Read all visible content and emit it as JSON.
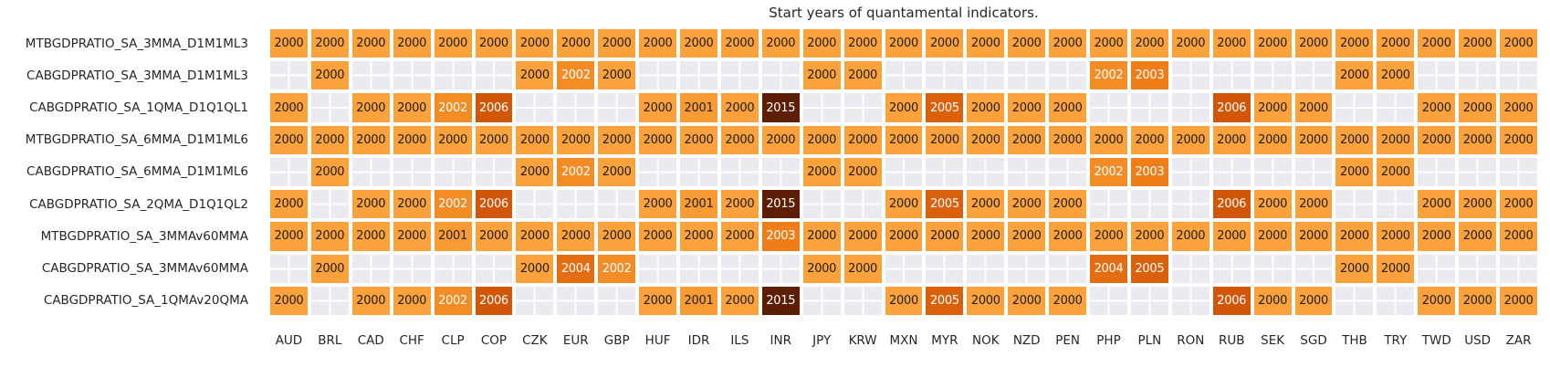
{
  "title": "Start years of quantamental indicators.",
  "chart_data": {
    "type": "heatmap",
    "title": "Start years of quantamental indicators.",
    "columns": [
      "AUD",
      "BRL",
      "CAD",
      "CHF",
      "CLP",
      "COP",
      "CZK",
      "EUR",
      "GBP",
      "HUF",
      "IDR",
      "ILS",
      "INR",
      "JPY",
      "KRW",
      "MXN",
      "MYR",
      "NOK",
      "NZD",
      "PEN",
      "PHP",
      "PLN",
      "RON",
      "RUB",
      "SEK",
      "SGD",
      "THB",
      "TRY",
      "TWD",
      "USD",
      "ZAR"
    ],
    "rows": [
      {
        "label": "MTBGDPRATIO_SA_3MMA_D1M1ML3",
        "values": [
          2000,
          2000,
          2000,
          2000,
          2000,
          2000,
          2000,
          2000,
          2000,
          2000,
          2000,
          2000,
          2000,
          2000,
          2000,
          2000,
          2000,
          2000,
          2000,
          2000,
          2000,
          2000,
          2000,
          2000,
          2000,
          2000,
          2000,
          2000,
          2000,
          2000,
          2000
        ]
      },
      {
        "label": "CABGDPRATIO_SA_3MMA_D1M1ML3",
        "values": [
          null,
          2000,
          null,
          null,
          null,
          null,
          2000,
          2002,
          2000,
          null,
          null,
          null,
          null,
          2000,
          2000,
          null,
          null,
          null,
          null,
          null,
          2002,
          2003,
          null,
          null,
          null,
          null,
          2000,
          2000,
          null,
          null,
          null
        ]
      },
      {
        "label": "CABGDPRATIO_SA_1QMA_D1Q1QL1",
        "values": [
          2000,
          null,
          2000,
          2000,
          2002,
          2006,
          null,
          null,
          null,
          2000,
          2001,
          2000,
          2015,
          null,
          null,
          2000,
          2005,
          2000,
          2000,
          2000,
          null,
          null,
          null,
          2006,
          2000,
          2000,
          null,
          null,
          2000,
          2000,
          2000
        ]
      },
      {
        "label": "MTBGDPRATIO_SA_6MMA_D1M1ML6",
        "values": [
          2000,
          2000,
          2000,
          2000,
          2000,
          2000,
          2000,
          2000,
          2000,
          2000,
          2000,
          2000,
          2000,
          2000,
          2000,
          2000,
          2000,
          2000,
          2000,
          2000,
          2000,
          2000,
          2000,
          2000,
          2000,
          2000,
          2000,
          2000,
          2000,
          2000,
          2000
        ]
      },
      {
        "label": "CABGDPRATIO_SA_6MMA_D1M1ML6",
        "values": [
          null,
          2000,
          null,
          null,
          null,
          null,
          2000,
          2002,
          2000,
          null,
          null,
          null,
          null,
          2000,
          2000,
          null,
          null,
          null,
          null,
          null,
          2002,
          2003,
          null,
          null,
          null,
          null,
          2000,
          2000,
          null,
          null,
          null
        ]
      },
      {
        "label": "CABGDPRATIO_SA_2QMA_D1Q1QL2",
        "values": [
          2000,
          null,
          2000,
          2000,
          2002,
          2006,
          null,
          null,
          null,
          2000,
          2001,
          2000,
          2015,
          null,
          null,
          2000,
          2005,
          2000,
          2000,
          2000,
          null,
          null,
          null,
          2006,
          2000,
          2000,
          null,
          null,
          2000,
          2000,
          2000
        ]
      },
      {
        "label": "MTBGDPRATIO_SA_3MMAv60MMA",
        "values": [
          2000,
          2000,
          2000,
          2000,
          2001,
          2000,
          2000,
          2000,
          2000,
          2000,
          2000,
          2000,
          2003,
          2000,
          2000,
          2000,
          2000,
          2000,
          2000,
          2000,
          2000,
          2000,
          2000,
          2000,
          2000,
          2000,
          2000,
          2000,
          2000,
          2000,
          2000
        ]
      },
      {
        "label": "CABGDPRATIO_SA_3MMAv60MMA",
        "values": [
          null,
          2000,
          null,
          null,
          null,
          null,
          2000,
          2004,
          2002,
          null,
          null,
          null,
          null,
          2000,
          2000,
          null,
          null,
          null,
          null,
          null,
          2004,
          2005,
          null,
          null,
          null,
          null,
          2000,
          2000,
          null,
          null,
          null
        ]
      },
      {
        "label": "CABGDPRATIO_SA_1QMAv20QMA",
        "values": [
          2000,
          null,
          2000,
          2000,
          2002,
          2006,
          null,
          null,
          null,
          2000,
          2001,
          2000,
          2015,
          null,
          null,
          2000,
          2005,
          2000,
          2000,
          2000,
          null,
          null,
          null,
          2006,
          2000,
          2000,
          null,
          null,
          2000,
          2000,
          2000
        ]
      }
    ],
    "year_colors": {
      "2000": "#fba23c",
      "2001": "#f99b33",
      "2002": "#f38c25",
      "2003": "#ef7e18",
      "2004": "#e36d10",
      "2005": "#da600b",
      "2006": "#d25607",
      "2015": "#5e1d05"
    },
    "dark_text_years": [
      "2000",
      "2001"
    ],
    "cell_text_dark": "#1f1f1f",
    "cell_text_light": "#ffffff",
    "empty_color": "#eaeaf1",
    "grid_color": "#ffffff",
    "legend": "off",
    "x_axis_position": "bottom",
    "y_axis_position": "left"
  }
}
